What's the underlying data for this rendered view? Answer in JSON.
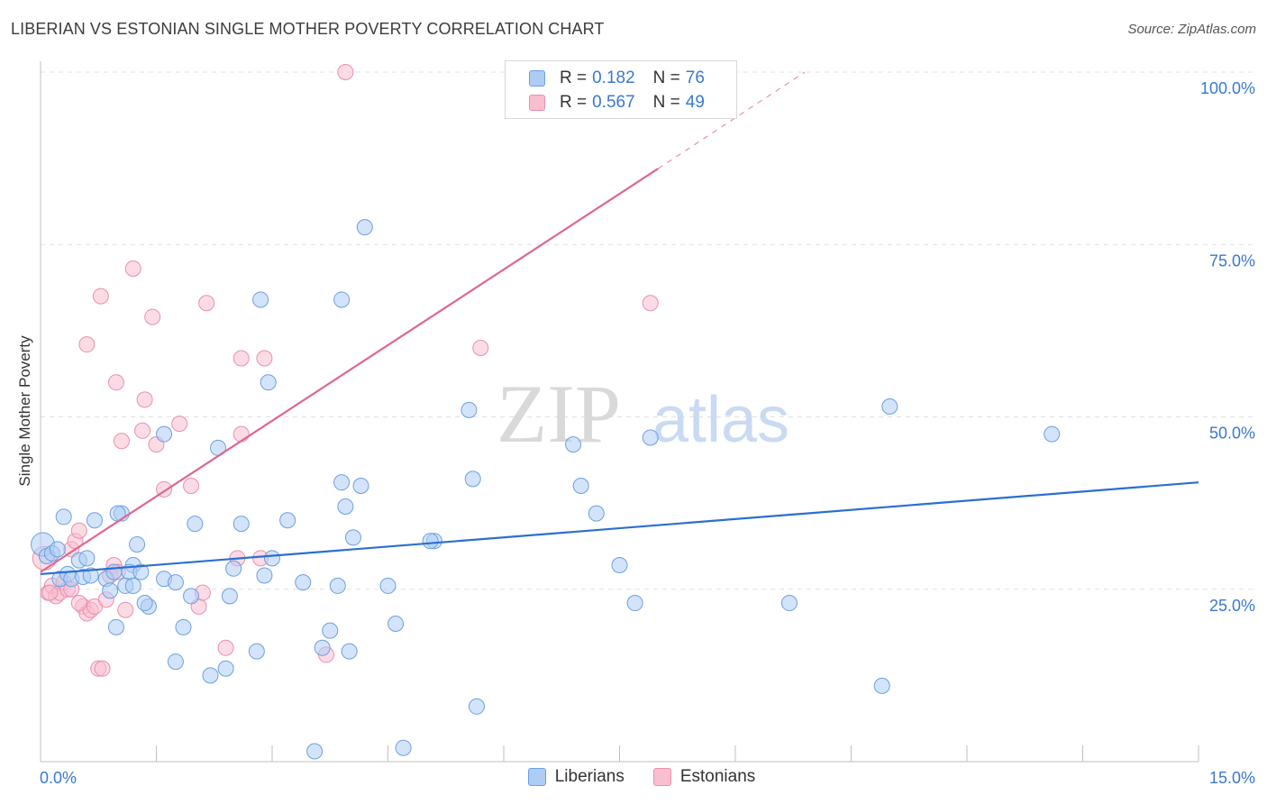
{
  "title": "LIBERIAN VS ESTONIAN SINGLE MOTHER POVERTY CORRELATION CHART",
  "source": "Source: ZipAtlas.com",
  "watermark": {
    "zip": "ZIP",
    "atlas": "atlas"
  },
  "legend": {
    "rows": [
      {
        "r_label": "R =",
        "r_value": "0.182",
        "n_label": "N =",
        "n_value": "76"
      },
      {
        "r_label": "R =",
        "r_value": "0.567",
        "n_label": "N =",
        "n_value": "49"
      }
    ],
    "bottom": [
      "Liberians",
      "Estonians"
    ]
  },
  "colors": {
    "blue_fill": "#aecdf5",
    "blue_edge": "#6d9fe0",
    "blue_line": "#2b6fd0",
    "pink_fill": "#f7bfd0",
    "pink_edge": "#ea8fae",
    "pink_line": "#e0668e",
    "tick_text": "#3a78d0",
    "grid": "#e0e0e0"
  },
  "chart_data": {
    "type": "scatter",
    "title": "LIBERIAN VS ESTONIAN SINGLE MOTHER POVERTY CORRELATION CHART",
    "xlabel": "",
    "ylabel": "Single Mother Poverty",
    "xlim": [
      0,
      15
    ],
    "ylim": [
      0,
      100
    ],
    "x_tick_labels": [
      {
        "value": 0,
        "label": "0.0%"
      },
      {
        "value": 15,
        "label": "15.0%"
      }
    ],
    "y_tick_labels": [
      {
        "value": 25,
        "label": "25.0%"
      },
      {
        "value": 50,
        "label": "50.0%"
      },
      {
        "value": 75,
        "label": "75.0%"
      },
      {
        "value": 100,
        "label": "100.0%"
      }
    ],
    "series": [
      {
        "name": "Liberians",
        "color": "blue",
        "r": 0.182,
        "n": 76,
        "trendline": {
          "x": [
            0,
            15
          ],
          "y": [
            27.2,
            40.5
          ]
        },
        "points": [
          [
            0.03,
            31.5
          ],
          [
            0.08,
            29.8
          ],
          [
            0.15,
            30.2
          ],
          [
            0.22,
            30.8
          ],
          [
            0.25,
            26.5
          ],
          [
            0.3,
            35.5
          ],
          [
            0.35,
            27.2
          ],
          [
            0.4,
            26.5
          ],
          [
            0.5,
            29.2
          ],
          [
            0.55,
            26.8
          ],
          [
            0.6,
            29.5
          ],
          [
            0.65,
            27.0
          ],
          [
            0.7,
            35.0
          ],
          [
            0.85,
            26.5
          ],
          [
            0.9,
            24.8
          ],
          [
            0.98,
            19.5
          ],
          [
            1.05,
            36.0
          ],
          [
            1.2,
            28.5
          ],
          [
            1.15,
            27.5
          ],
          [
            1.25,
            31.5
          ],
          [
            1.1,
            25.5
          ],
          [
            1.3,
            27.5
          ],
          [
            1.6,
            26.5
          ],
          [
            1.75,
            14.5
          ],
          [
            1.85,
            19.5
          ],
          [
            1.95,
            24.0
          ],
          [
            1.75,
            26.0
          ],
          [
            2.2,
            12.5
          ],
          [
            2.4,
            13.5
          ],
          [
            2.45,
            24.0
          ],
          [
            2.6,
            34.5
          ],
          [
            2.8,
            16.0
          ],
          [
            2.9,
            27.0
          ],
          [
            3.0,
            29.5
          ],
          [
            3.2,
            35.0
          ],
          [
            3.4,
            26.0
          ],
          [
            3.55,
            1.5
          ],
          [
            3.75,
            19.0
          ],
          [
            3.85,
            25.5
          ],
          [
            4.05,
            32.5
          ],
          [
            4.6,
            20.0
          ],
          [
            4.5,
            25.5
          ],
          [
            5.1,
            32.0
          ],
          [
            5.6,
            41.0
          ],
          [
            5.65,
            8.0
          ],
          [
            4.15,
            40.0
          ],
          [
            3.95,
            37.0
          ],
          [
            3.9,
            40.5
          ],
          [
            2.85,
            67.0
          ],
          [
            3.9,
            67.0
          ],
          [
            4.2,
            77.5
          ],
          [
            2.95,
            55.0
          ],
          [
            1.6,
            47.5
          ],
          [
            2.3,
            45.5
          ],
          [
            5.55,
            51.0
          ],
          [
            7.0,
            40.0
          ],
          [
            7.2,
            36.0
          ],
          [
            7.9,
            47.0
          ],
          [
            6.9,
            46.0
          ],
          [
            7.5,
            28.5
          ],
          [
            7.7,
            23.0
          ],
          [
            9.7,
            23.0
          ],
          [
            11.0,
            51.5
          ],
          [
            13.1,
            47.5
          ],
          [
            10.9,
            11.0
          ],
          [
            4.0,
            16.0
          ],
          [
            1.0,
            36.0
          ],
          [
            1.4,
            22.5
          ],
          [
            1.35,
            23.0
          ],
          [
            4.7,
            2.0
          ],
          [
            5.05,
            32.0
          ],
          [
            2.5,
            28.0
          ],
          [
            2.0,
            34.5
          ],
          [
            1.2,
            25.5
          ],
          [
            0.95,
            27.5
          ],
          [
            3.65,
            16.5
          ]
        ]
      },
      {
        "name": "Estonians",
        "color": "pink",
        "r": 0.567,
        "n": 49,
        "trendline": {
          "x": [
            0,
            8
          ],
          "y": [
            27.5,
            86.0
          ]
        },
        "trendline_dashed_extension": {
          "x": [
            8,
            9.9
          ],
          "y": [
            86.0,
            100.0
          ]
        },
        "points": [
          [
            0.05,
            29.5
          ],
          [
            0.1,
            24.5
          ],
          [
            0.15,
            25.5
          ],
          [
            0.2,
            24.0
          ],
          [
            0.25,
            24.5
          ],
          [
            0.3,
            26.0
          ],
          [
            0.35,
            25.0
          ],
          [
            0.4,
            30.8
          ],
          [
            0.45,
            32.0
          ],
          [
            0.5,
            33.5
          ],
          [
            0.55,
            22.5
          ],
          [
            0.6,
            21.5
          ],
          [
            0.65,
            22.0
          ],
          [
            0.7,
            22.5
          ],
          [
            0.75,
            13.5
          ],
          [
            0.8,
            13.5
          ],
          [
            0.85,
            23.5
          ],
          [
            0.95,
            28.5
          ],
          [
            0.9,
            27.0
          ],
          [
            1.1,
            22.0
          ],
          [
            0.6,
            60.5
          ],
          [
            0.78,
            67.5
          ],
          [
            0.98,
            55.0
          ],
          [
            1.2,
            71.5
          ],
          [
            1.45,
            64.5
          ],
          [
            1.35,
            52.5
          ],
          [
            1.32,
            48.0
          ],
          [
            1.05,
            46.5
          ],
          [
            1.5,
            46.0
          ],
          [
            1.6,
            39.5
          ],
          [
            1.8,
            49.0
          ],
          [
            1.95,
            40.0
          ],
          [
            2.15,
            66.5
          ],
          [
            2.6,
            58.5
          ],
          [
            2.9,
            58.5
          ],
          [
            2.6,
            47.5
          ],
          [
            2.55,
            29.5
          ],
          [
            2.85,
            29.5
          ],
          [
            2.05,
            22.5
          ],
          [
            2.1,
            24.5
          ],
          [
            2.4,
            16.5
          ],
          [
            3.7,
            15.5
          ],
          [
            3.95,
            100.0
          ],
          [
            5.7,
            60.0
          ],
          [
            7.9,
            66.5
          ],
          [
            0.12,
            24.5
          ],
          [
            0.4,
            25.0
          ],
          [
            0.5,
            23.0
          ],
          [
            1.0,
            27.5
          ]
        ]
      }
    ]
  }
}
